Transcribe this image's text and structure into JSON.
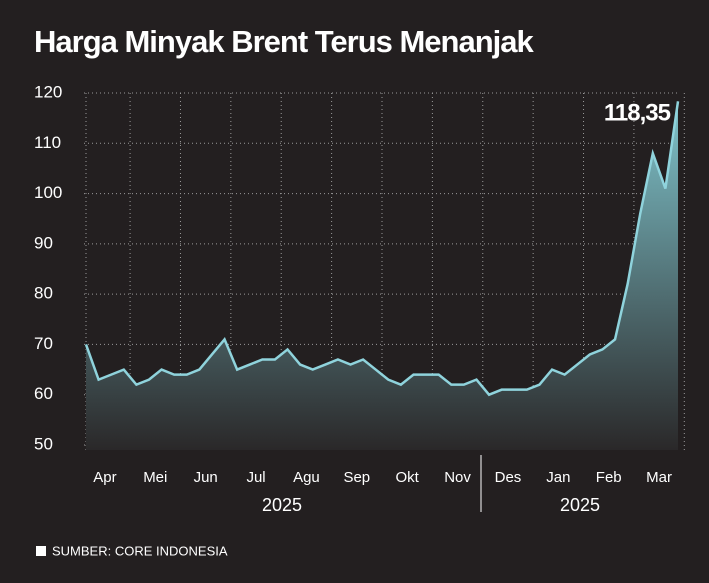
{
  "chart_data": {
    "type": "area",
    "title": "Harga Minyak Brent Terus Menanjak",
    "categories": [
      null,
      "Apr",
      null,
      null,
      null,
      "Mei",
      null,
      null,
      null,
      "Jun",
      null,
      null,
      null,
      "Jul",
      null,
      null,
      null,
      "Agu",
      null,
      null,
      null,
      "Sep",
      null,
      null,
      null,
      "Okt",
      null,
      null,
      null,
      "Nov",
      null,
      null,
      null,
      "Des",
      null,
      null,
      null,
      "Jan",
      null,
      null,
      null,
      "Feb",
      null,
      null,
      null,
      "Mar",
      null,
      null
    ],
    "year_labels": [
      "2025",
      "2025"
    ],
    "series": [
      {
        "color": "#8fd3dc",
        "values": [
          70,
          63,
          64,
          65,
          62,
          63,
          65,
          64,
          64,
          65,
          68,
          71,
          65,
          66,
          67,
          67,
          69,
          66,
          65,
          66,
          67,
          66,
          67,
          65,
          63,
          62,
          64,
          64,
          64,
          62,
          62,
          63,
          60,
          61,
          61,
          61,
          62,
          65,
          64,
          66,
          68,
          69,
          71,
          82,
          96,
          108,
          101,
          118.35
        ],
        "value_labels": [
          null,
          null,
          null,
          null,
          null,
          null,
          null,
          null,
          null,
          null,
          null,
          null,
          null,
          null,
          null,
          null,
          null,
          null,
          null,
          null,
          null,
          null,
          null,
          null,
          null,
          null,
          null,
          null,
          null,
          null,
          null,
          null,
          null,
          null,
          null,
          null,
          null,
          null,
          null,
          null,
          null,
          null,
          null,
          null,
          null,
          null,
          null,
          "118,35"
        ]
      }
    ],
    "ylim": [
      50,
      120
    ],
    "yticks": [
      50,
      60,
      70,
      80,
      90,
      100,
      110,
      120
    ],
    "grid": true,
    "source": "SUMBER: CORE INDONESIA"
  }
}
